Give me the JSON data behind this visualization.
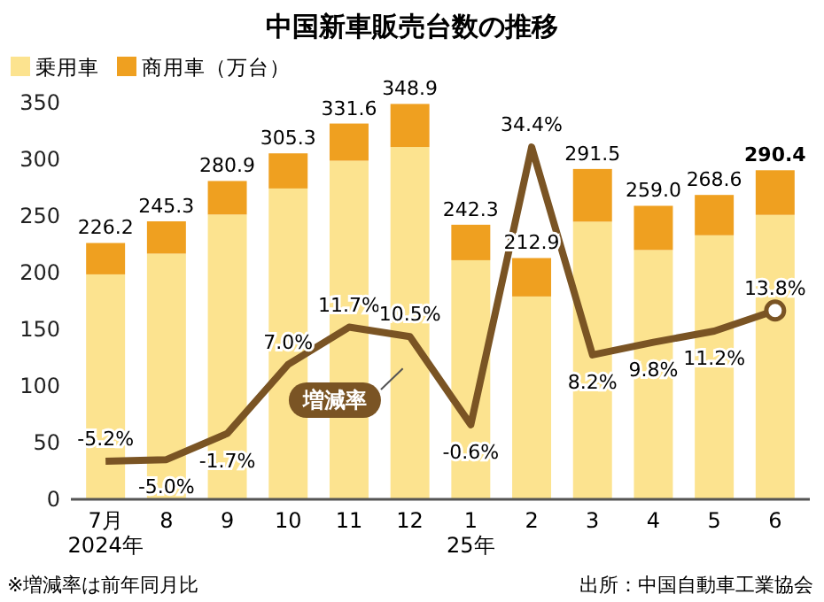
{
  "chart_data": {
    "type": "bar",
    "title": "中国新車販売台数の推移",
    "categories": [
      "7月\n2024年",
      "8",
      "9",
      "10",
      "11",
      "12",
      "1\n25年",
      "2",
      "3",
      "4",
      "5",
      "6"
    ],
    "stacked": true,
    "series": [
      {
        "name": "乗用車",
        "color": "#fce38f",
        "values": [
          198.5,
          216.8,
          251.3,
          274.3,
          298.8,
          310.9,
          211.0,
          179.0,
          245.0,
          220.0,
          233.0,
          251.0
        ]
      },
      {
        "name": "商用車（万台）",
        "color": "#efa020",
        "values": [
          27.7,
          28.5,
          29.6,
          31.0,
          32.8,
          38.0,
          31.3,
          33.9,
          46.5,
          39.0,
          35.6,
          39.4
        ]
      },
      {
        "name": "増減率",
        "type": "line",
        "axis": "y2",
        "color": "#7a5424",
        "values": [
          -5.2,
          -5.0,
          -1.7,
          7.0,
          11.7,
          10.5,
          -0.6,
          34.4,
          8.2,
          9.8,
          11.2,
          13.8
        ],
        "value_labels": [
          "-5.2%",
          "-5.0%",
          "-1.7%",
          "7.0%",
          "11.7%",
          "10.5%",
          "-0.6%",
          "34.4%",
          "8.2%",
          "9.8%",
          "11.2%",
          "13.8%"
        ]
      }
    ],
    "totals": [
      "226.2",
      "245.3",
      "280.9",
      "305.3",
      "331.6",
      "348.9",
      "242.3",
      "212.9",
      "291.5",
      "259.0",
      "268.6",
      "290.4"
    ],
    "ylim": [
      0,
      350
    ],
    "yticks": [
      0,
      50,
      100,
      150,
      200,
      250,
      300,
      350
    ],
    "y2lim": [
      -10,
      40
    ],
    "legend": "top left",
    "annotations": [
      "※増減率は前年同月比",
      "出所：中国自動車工業協会"
    ]
  }
}
